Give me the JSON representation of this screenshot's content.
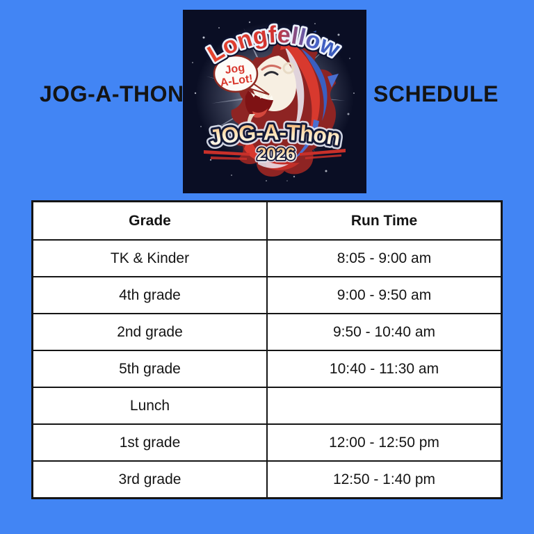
{
  "page": {
    "background_color": "#4285f4",
    "left_title": "JOG-A-THON",
    "right_title": "SCHEDULE"
  },
  "logo": {
    "school_name": "Longfellow",
    "speech_bubble": {
      "line1": "Jog",
      "line2": "A-Lot!"
    },
    "event_name": "JOG-A-Thon",
    "year": "2026",
    "background_color": "#0a0e24",
    "accent_red": "#d8392e",
    "accent_blue": "#3a5fc0",
    "accent_gold": "#ffe3b8"
  },
  "table": {
    "headers": [
      "Grade",
      "Run Time"
    ],
    "rows": [
      {
        "grade": "TK & Kinder",
        "run_time": "8:05 - 9:00 am"
      },
      {
        "grade": "4th grade",
        "run_time": "9:00 - 9:50 am"
      },
      {
        "grade": "2nd grade",
        "run_time": "9:50 - 10:40 am"
      },
      {
        "grade": "5th grade",
        "run_time": "10:40 - 11:30 am"
      },
      {
        "grade": "Lunch",
        "run_time": ""
      },
      {
        "grade": "1st grade",
        "run_time": "12:00 - 12:50 pm"
      },
      {
        "grade": "3rd grade",
        "run_time": "12:50 - 1:40 pm"
      }
    ]
  }
}
